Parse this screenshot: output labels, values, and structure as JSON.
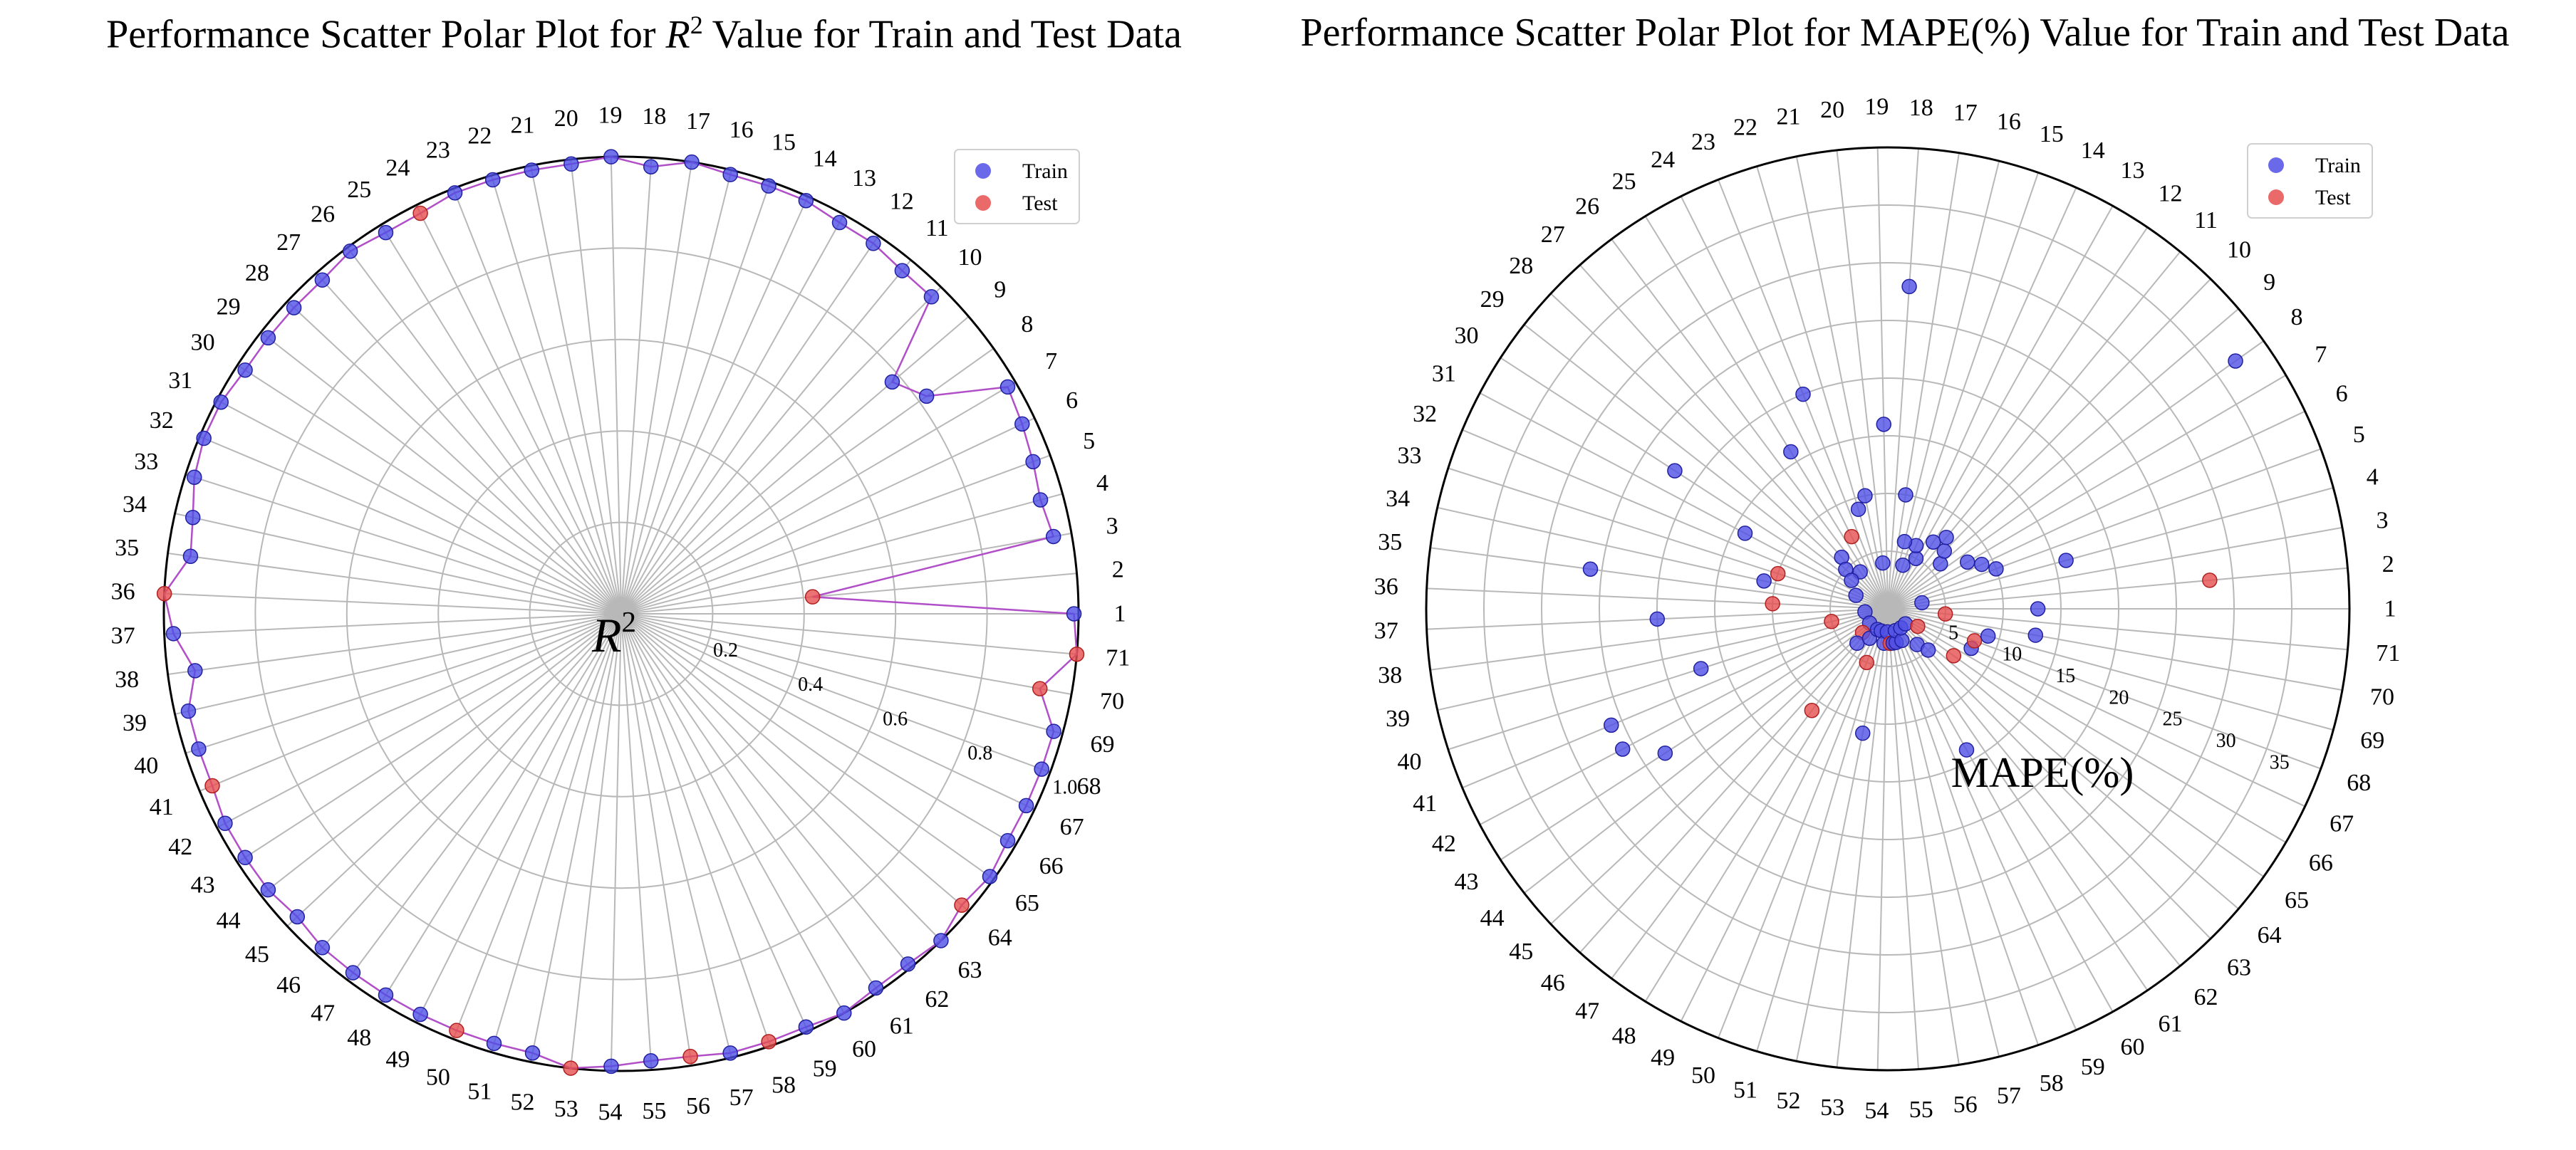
{
  "charts": [
    {
      "id": "r2",
      "title_prefix": "Performance Scatter Polar Plot for ",
      "title_symbol": "R",
      "title_sup": "2",
      "title_suffix": " Value for Train and Test Data",
      "center_label": "R",
      "center_label_sup": "2"
    },
    {
      "id": "mape",
      "title": "Performance Scatter Polar Plot for MAPE(%) Value for Train and Test Data",
      "center_label": "MAPE(%)"
    }
  ],
  "colors": {
    "train": "#4f4fe6",
    "test": "#e64f4f",
    "connector": "#b04fc8",
    "grid": "#b8b8b8",
    "outer": "#000000"
  },
  "chart_data": [
    {
      "type": "scatter",
      "projection": "polar",
      "title": "Performance Scatter Polar Plot for R^2 Value for Train and Test Data",
      "angular_categories": [
        "1",
        "2",
        "3",
        "4",
        "5",
        "6",
        "7",
        "8",
        "9",
        "10",
        "11",
        "12",
        "13",
        "14",
        "15",
        "16",
        "17",
        "18",
        "19",
        "20",
        "21",
        "22",
        "23",
        "24",
        "25",
        "26",
        "27",
        "28",
        "29",
        "30",
        "31",
        "32",
        "33",
        "34",
        "35",
        "36",
        "37",
        "38",
        "39",
        "40",
        "41",
        "42",
        "43",
        "44",
        "45",
        "46",
        "47",
        "48",
        "49",
        "50",
        "51",
        "52",
        "53",
        "54",
        "55",
        "56",
        "57",
        "58",
        "59",
        "60",
        "61",
        "62",
        "63",
        "64",
        "65",
        "66",
        "67",
        "68",
        "69",
        "70",
        "71"
      ],
      "radial_ticks": [
        "0.2",
        "0.4",
        "0.6",
        "0.8",
        "1.0"
      ],
      "rlim": [
        0,
        1
      ],
      "center_label": "R^2",
      "legend": {
        "position": "top-right",
        "entries": [
          "Train",
          "Test"
        ]
      },
      "connected": true,
      "grid": true,
      "values": [
        0.99,
        0.42,
        0.96,
        0.95,
        0.96,
        0.97,
        0.98,
        0.82,
        0.78,
        0.97,
        0.97,
        0.98,
        0.98,
        0.99,
        0.99,
        0.99,
        1.0,
        0.98,
        1.0,
        0.99,
        0.99,
        0.99,
        0.99,
        0.98,
        0.98,
        0.99,
        0.98,
        0.98,
        0.98,
        0.98,
        0.99,
        0.99,
        0.98,
        0.96,
        0.95,
        1.0,
        0.98,
        0.94,
        0.97,
        0.97,
        0.97,
        0.98,
        0.98,
        0.98,
        0.97,
        0.98,
        0.98,
        0.98,
        0.98,
        0.98,
        0.98,
        0.98,
        1.0,
        0.99,
        0.98,
        0.98,
        0.99,
        0.99,
        0.99,
        1.0,
        0.99,
        0.99,
        1.0,
        0.98,
        0.99,
        0.98,
        0.98,
        0.98,
        0.98,
        0.93,
        1.0
      ],
      "series_of_point": [
        "Train",
        "Test",
        "Train",
        "Train",
        "Train",
        "Train",
        "Train",
        "Train",
        "Train",
        "Train",
        "Train",
        "Train",
        "Train",
        "Train",
        "Train",
        "Train",
        "Train",
        "Train",
        "Train",
        "Train",
        "Train",
        "Train",
        "Train",
        "Test",
        "Train",
        "Train",
        "Train",
        "Train",
        "Train",
        "Train",
        "Train",
        "Train",
        "Train",
        "Train",
        "Train",
        "Test",
        "Train",
        "Train",
        "Train",
        "Train",
        "Test",
        "Train",
        "Train",
        "Train",
        "Train",
        "Train",
        "Train",
        "Train",
        "Train",
        "Test",
        "Train",
        "Train",
        "Test",
        "Train",
        "Train",
        "Test",
        "Train",
        "Test",
        "Train",
        "Train",
        "Train",
        "Train",
        "Train",
        "Test",
        "Train",
        "Train",
        "Train",
        "Train",
        "Train",
        "Test",
        "Test"
      ]
    },
    {
      "type": "scatter",
      "projection": "polar",
      "title": "Performance Scatter Polar Plot for MAPE(%) Value for Train and Test Data",
      "angular_categories": [
        "1",
        "2",
        "3",
        "4",
        "5",
        "6",
        "7",
        "8",
        "9",
        "10",
        "11",
        "12",
        "13",
        "14",
        "15",
        "16",
        "17",
        "18",
        "19",
        "20",
        "21",
        "22",
        "23",
        "24",
        "25",
        "26",
        "27",
        "28",
        "29",
        "30",
        "31",
        "32",
        "33",
        "34",
        "35",
        "36",
        "37",
        "38",
        "39",
        "40",
        "41",
        "42",
        "43",
        "44",
        "45",
        "46",
        "47",
        "48",
        "49",
        "50",
        "51",
        "52",
        "53",
        "54",
        "55",
        "56",
        "57",
        "58",
        "59",
        "60",
        "61",
        "62",
        "63",
        "64",
        "65",
        "66",
        "67",
        "68",
        "69",
        "70",
        "71"
      ],
      "radial_ticks": [
        "5",
        "10",
        "15",
        "20",
        "25",
        "30",
        "35"
      ],
      "rlim": [
        0,
        40
      ],
      "center_label": "MAPE(%)",
      "legend": {
        "position": "top-right",
        "entries": [
          "Train",
          "Test"
        ]
      },
      "connected": false,
      "grid": true,
      "values": [
        13,
        28,
        3,
        16,
        10,
        9,
        8,
        37,
        6,
        7,
        8,
        7,
        5,
        6,
        4,
        6,
        10,
        28,
        16,
        4,
        10,
        9,
        20,
        7,
        16,
        4,
        6,
        5,
        4,
        22,
        14,
        3,
        10,
        11,
        26,
        10,
        20,
        2,
        5,
        17,
        26,
        26,
        23,
        2,
        3,
        4,
        11,
        3,
        2,
        5,
        2,
        11,
        3,
        2,
        3,
        3,
        3,
        2,
        3,
        14,
        2,
        4,
        5,
        2,
        7,
        3,
        8,
        8,
        9,
        13,
        5
      ],
      "series_of_point": [
        "Train",
        "Test",
        "Train",
        "Train",
        "Train",
        "Train",
        "Train",
        "Train",
        "Train",
        "Train",
        "Train",
        "Train",
        "Train",
        "Train",
        "Train",
        "Train",
        "Train",
        "Train",
        "Train",
        "Train",
        "Train",
        "Train",
        "Train",
        "Test",
        "Train",
        "Train",
        "Train",
        "Train",
        "Train",
        "Train",
        "Train",
        "Train",
        "Test",
        "Train",
        "Train",
        "Test",
        "Train",
        "Train",
        "Test",
        "Train",
        "Train",
        "Train",
        "Train",
        "Train",
        "Test",
        "Train",
        "Test",
        "Train",
        "Train",
        "Test",
        "Train",
        "Train",
        "Train",
        "Train",
        "Test",
        "Train",
        "Train",
        "Train",
        "Train",
        "Train",
        "Train",
        "Train",
        "Train",
        "Train",
        "Test",
        "Test",
        "Train",
        "Test",
        "Train",
        "Train",
        "Test"
      ]
    }
  ],
  "legend_labels": {
    "train": "Train",
    "test": "Test"
  }
}
